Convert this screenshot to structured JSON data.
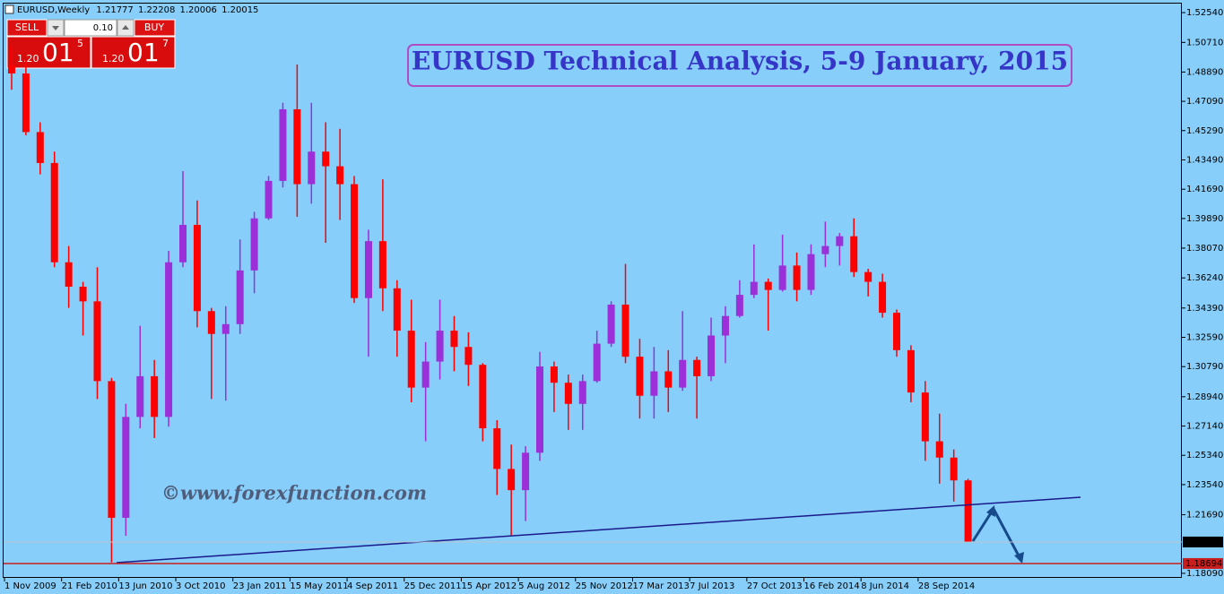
{
  "header": {
    "symbol": "EURUSD,Weekly",
    "ohlc": [
      1.21777,
      1.22208,
      1.20006,
      1.20015
    ]
  },
  "trade_panel": {
    "sell": "SELL",
    "buy": "BUY",
    "lot": "0.10",
    "sell_price": [
      "1.20",
      "01",
      "5"
    ],
    "buy_price": [
      "1.20",
      "01",
      "7"
    ]
  },
  "chart_data": {
    "type": "candlestick",
    "title": "EURUSD Technical Analysis, 5-9 January, 2015",
    "watermark": "©www.forexfunction.com",
    "x": [
      "2009-11-01",
      "2009-11-29",
      "2009-12-27",
      "2010-01-24",
      "2010-02-21",
      "2010-03-21",
      "2010-04-18",
      "2010-05-16",
      "2010-06-13",
      "2010-07-11",
      "2010-08-08",
      "2010-09-05",
      "2010-10-03",
      "2010-10-31",
      "2010-11-28",
      "2010-12-26",
      "2011-01-23",
      "2011-02-20",
      "2011-03-20",
      "2011-04-17",
      "2011-05-15",
      "2011-06-12",
      "2011-07-10",
      "2011-08-07",
      "2011-09-04",
      "2011-10-02",
      "2011-10-30",
      "2011-11-27",
      "2011-12-25",
      "2012-01-22",
      "2012-02-19",
      "2012-03-18",
      "2012-04-15",
      "2012-05-13",
      "2012-06-10",
      "2012-07-08",
      "2012-08-05",
      "2012-09-02",
      "2012-09-30",
      "2012-10-28",
      "2012-11-25",
      "2012-12-23",
      "2013-01-20",
      "2013-02-17",
      "2013-03-17",
      "2013-04-14",
      "2013-05-12",
      "2013-06-09",
      "2013-07-07",
      "2013-08-04",
      "2013-09-01",
      "2013-09-29",
      "2013-10-27",
      "2013-11-24",
      "2013-12-22",
      "2014-01-19",
      "2014-02-16",
      "2014-03-16",
      "2014-04-13",
      "2014-05-11",
      "2014-06-08",
      "2014-07-06",
      "2014-08-03",
      "2014-08-31",
      "2014-09-28",
      "2014-10-26",
      "2014-11-23",
      "2014-12-21"
    ],
    "open": [
      1.493,
      1.488,
      1.452,
      1.433,
      1.372,
      1.357,
      1.348,
      1.299,
      1.215,
      1.277,
      1.302,
      1.277,
      1.372,
      1.395,
      1.342,
      1.328,
      1.334,
      1.367,
      1.399,
      1.422,
      1.466,
      1.42,
      1.44,
      1.431,
      1.42,
      1.35,
      1.385,
      1.356,
      1.33,
      1.295,
      1.311,
      1.33,
      1.32,
      1.309,
      1.27,
      1.245,
      1.232,
      1.255,
      1.308,
      1.298,
      1.285,
      1.299,
      1.322,
      1.346,
      1.314,
      1.29,
      1.305,
      1.295,
      1.312,
      1.302,
      1.327,
      1.339,
      1.352,
      1.36,
      1.355,
      1.37,
      1.355,
      1.377,
      1.382,
      1.388,
      1.366,
      1.36,
      1.341,
      1.318,
      1.292,
      1.262,
      1.252,
      1.238
    ],
    "high": [
      1.505,
      1.496,
      1.458,
      1.44,
      1.382,
      1.36,
      1.369,
      1.301,
      1.285,
      1.333,
      1.312,
      1.379,
      1.428,
      1.41,
      1.344,
      1.345,
      1.386,
      1.403,
      1.425,
      1.47,
      1.4935,
      1.47,
      1.458,
      1.454,
      1.425,
      1.392,
      1.423,
      1.361,
      1.349,
      1.323,
      1.349,
      1.339,
      1.329,
      1.31,
      1.275,
      1.26,
      1.259,
      1.317,
      1.311,
      1.303,
      1.303,
      1.33,
      1.348,
      1.371,
      1.325,
      1.32,
      1.318,
      1.342,
      1.314,
      1.338,
      1.345,
      1.361,
      1.383,
      1.362,
      1.389,
      1.378,
      1.383,
      1.397,
      1.39,
      1.399,
      1.368,
      1.365,
      1.343,
      1.321,
      1.299,
      1.279,
      1.257,
      1.239
    ],
    "low": [
      1.478,
      1.45,
      1.426,
      1.369,
      1.344,
      1.327,
      1.288,
      1.1876,
      1.204,
      1.27,
      1.264,
      1.271,
      1.369,
      1.332,
      1.288,
      1.287,
      1.328,
      1.353,
      1.398,
      1.418,
      1.4,
      1.408,
      1.384,
      1.398,
      1.347,
      1.314,
      1.342,
      1.314,
      1.286,
      1.262,
      1.3,
      1.305,
      1.296,
      1.262,
      1.229,
      1.2043,
      1.213,
      1.25,
      1.28,
      1.269,
      1.269,
      1.298,
      1.32,
      1.31,
      1.276,
      1.276,
      1.28,
      1.293,
      1.276,
      1.299,
      1.31,
      1.338,
      1.35,
      1.33,
      1.354,
      1.348,
      1.352,
      1.369,
      1.37,
      1.363,
      1.351,
      1.338,
      1.314,
      1.286,
      1.25,
      1.236,
      1.225,
      1.20006
    ],
    "close": [
      1.488,
      1.452,
      1.433,
      1.372,
      1.357,
      1.348,
      1.299,
      1.215,
      1.277,
      1.302,
      1.277,
      1.372,
      1.395,
      1.342,
      1.328,
      1.334,
      1.367,
      1.399,
      1.422,
      1.466,
      1.42,
      1.44,
      1.431,
      1.42,
      1.35,
      1.385,
      1.356,
      1.33,
      1.295,
      1.311,
      1.33,
      1.32,
      1.309,
      1.27,
      1.245,
      1.232,
      1.255,
      1.308,
      1.298,
      1.285,
      1.299,
      1.322,
      1.346,
      1.314,
      1.29,
      1.305,
      1.295,
      1.312,
      1.302,
      1.327,
      1.339,
      1.352,
      1.36,
      1.355,
      1.37,
      1.355,
      1.377,
      1.382,
      1.388,
      1.366,
      1.36,
      1.341,
      1.318,
      1.292,
      1.262,
      1.252,
      1.238,
      1.20015
    ],
    "up_color": "#9b30d8",
    "down_color": "#ff0000",
    "ylim": [
      1.1781,
      1.5315
    ],
    "yticks": [
      {
        "value": 1.5254,
        "label": "1.52540"
      },
      {
        "value": 1.5071,
        "label": "1.50710"
      },
      {
        "value": 1.4889,
        "label": "1.48890"
      },
      {
        "value": 1.4709,
        "label": "1.47090"
      },
      {
        "value": 1.4529,
        "label": "1.45290"
      },
      {
        "value": 1.4349,
        "label": "1.43490"
      },
      {
        "value": 1.4169,
        "label": "1.41690"
      },
      {
        "value": 1.3989,
        "label": "1.39890"
      },
      {
        "value": 1.3807,
        "label": "1.38070"
      },
      {
        "value": 1.3624,
        "label": "1.36240"
      },
      {
        "value": 1.3439,
        "label": "1.34390"
      },
      {
        "value": 1.3259,
        "label": "1.32590"
      },
      {
        "value": 1.3079,
        "label": "1.30790"
      },
      {
        "value": 1.2894,
        "label": "1.28940"
      },
      {
        "value": 1.2714,
        "label": "1.27140"
      },
      {
        "value": 1.2534,
        "label": "1.25340"
      },
      {
        "value": 1.2354,
        "label": "1.23540"
      },
      {
        "value": 1.2169,
        "label": "1.21690"
      },
      {
        "value": 1.1809,
        "label": "1.18090"
      }
    ],
    "xticks": [
      {
        "value": "2009-11-01",
        "label": "1 Nov 2009"
      },
      {
        "value": "2010-02-21",
        "label": "21 Feb 2010"
      },
      {
        "value": "2010-06-13",
        "label": "13 Jun 2010"
      },
      {
        "value": "2010-10-03",
        "label": "3 Oct 2010"
      },
      {
        "value": "2011-01-23",
        "label": "23 Jan 2011"
      },
      {
        "value": "2011-05-15",
        "label": "15 May 2011"
      },
      {
        "value": "2011-09-04",
        "label": "4 Sep 2011"
      },
      {
        "value": "2011-12-25",
        "label": "25 Dec 2011"
      },
      {
        "value": "2012-04-15",
        "label": "15 Apr 2012"
      },
      {
        "value": "2012-08-05",
        "label": "5 Aug 2012"
      },
      {
        "value": "2012-11-25",
        "label": "25 Nov 2012"
      },
      {
        "value": "2013-03-17",
        "label": "17 Mar 2013"
      },
      {
        "value": "2013-07-07",
        "label": "7 Jul 2013"
      },
      {
        "value": "2013-10-27",
        "label": "27 Oct 2013"
      },
      {
        "value": "2014-02-16",
        "label": "16 Feb 2014"
      },
      {
        "value": "2014-06-08",
        "label": "8 Jun 2014"
      },
      {
        "value": "2014-09-28",
        "label": "28 Sep 2014"
      }
    ],
    "price_line": 1.20015,
    "level_line": 1.18694,
    "level_color": "#c81e1e"
  }
}
